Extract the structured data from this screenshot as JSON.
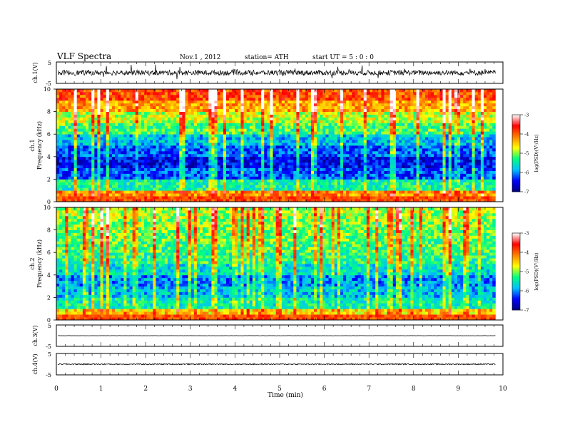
{
  "header": {
    "title": "VLF  Spectra",
    "date": "Nov.1  , 2012",
    "station": "station= ATH",
    "start": "start  UT  =    5  : 0  : 0"
  },
  "panels": {
    "ch1_wave": {
      "ylabel": "ch.1(V)",
      "yticks": [
        "5",
        "-5"
      ]
    },
    "ch1_spec": {
      "ylabel_line1": "ch.1",
      "ylabel_line2": "Frequency  (kHz)",
      "yticks": [
        "0",
        "2",
        "4",
        "6",
        "8",
        "10"
      ]
    },
    "ch2_spec": {
      "ylabel_line1": "ch.2",
      "ylabel_line2": "Frequency  (kHz)",
      "yticks": [
        "0",
        "2",
        "4",
        "6",
        "8",
        "10"
      ]
    },
    "ch3_wave": {
      "ylabel": "ch.3(V)",
      "yticks": [
        "5",
        "-5"
      ]
    },
    "ch4_wave": {
      "ylabel": "ch.4(V)",
      "yticks": [
        "5",
        "-5"
      ]
    }
  },
  "colorbar": {
    "label": "log(PSD)(V²/Hz)",
    "ticks": [
      "-3",
      "-4",
      "-5",
      "-6",
      "-7"
    ]
  },
  "xaxis": {
    "label": "Time  (min)",
    "ticks": [
      "0",
      "1",
      "2",
      "3",
      "4",
      "5",
      "6",
      "7",
      "8",
      "9",
      "10"
    ]
  },
  "chart_data": {
    "type": "heatmap",
    "title": "VLF  Spectra",
    "xlabel": "Time  (min)",
    "x_range": [
      0,
      10
    ],
    "data_end_min": 9.83,
    "ylabel": "Frequency  (kHz)",
    "y_range": [
      0,
      10
    ],
    "color_label": "log(PSD)(V²/Hz)",
    "color_range": [
      -7,
      -3
    ],
    "colormap": [
      "#000080",
      "#0000ff",
      "#00bfff",
      "#00ff80",
      "#ffff00",
      "#ff8000",
      "#ff0000",
      "#ffffff"
    ],
    "channels": [
      {
        "name": "ch.1",
        "freq_kHz": [
          0.5,
          1.5,
          2.5,
          3.5,
          4.5,
          5.5,
          6.5,
          7.5,
          8.5,
          9.5
        ],
        "mean_logPSD": [
          -4.2,
          -5.4,
          -6.2,
          -6.5,
          -6.2,
          -5.8,
          -5.2,
          -4.8,
          -4.3,
          -3.9
        ]
      },
      {
        "name": "ch.2",
        "freq_kHz": [
          0.5,
          1.5,
          2.5,
          3.5,
          4.5,
          5.5,
          6.5,
          7.5,
          8.5,
          9.5
        ],
        "mean_logPSD": [
          -4.5,
          -5.5,
          -5.8,
          -6.0,
          -5.6,
          -5.3,
          -5.2,
          -5.1,
          -5.0,
          -4.9
        ]
      }
    ],
    "waveforms": [
      {
        "name": "ch.1(V)",
        "ylim": [
          -5,
          5
        ],
        "level": 0,
        "noise_amplitude": 1.2
      },
      {
        "name": "ch.3(V)",
        "ylim": [
          -5,
          5
        ],
        "level": 0,
        "noise_amplitude": 0.05
      },
      {
        "name": "ch.4(V)",
        "ylim": [
          -5,
          5
        ],
        "level": 0,
        "noise_amplitude": 0.25
      }
    ]
  }
}
